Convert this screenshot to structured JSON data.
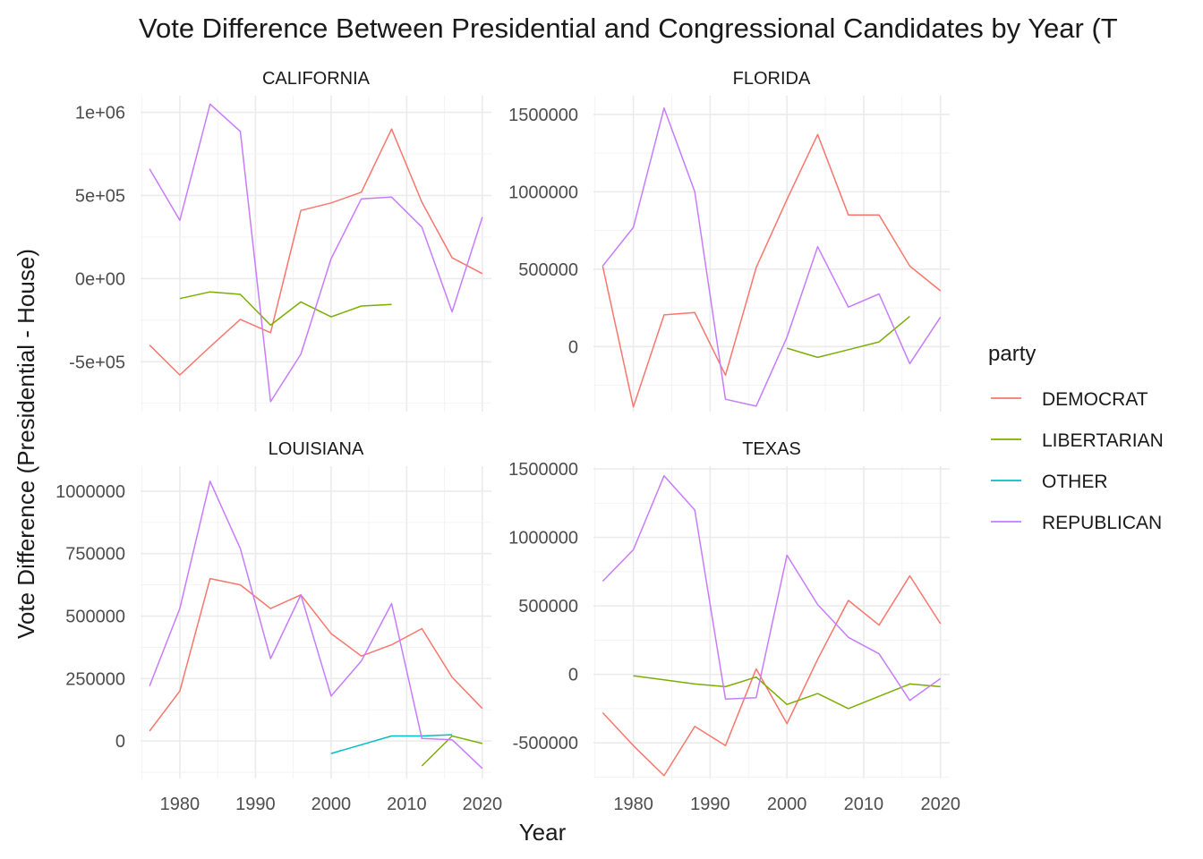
{
  "chart_data": {
    "type": "line",
    "title": "Vote Difference Between Presidential and Congressional Candidates by Year (T",
    "xlabel": "Year",
    "ylabel": "Vote Difference (Presidential - House)",
    "legend_title": "party",
    "legend_placement": "right",
    "grid": true,
    "parties": [
      {
        "name": "DEMOCRAT",
        "color": "#F8766D"
      },
      {
        "name": "LIBERTARIAN",
        "color": "#7CAE00"
      },
      {
        "name": "OTHER",
        "color": "#00BFC4"
      },
      {
        "name": "REPUBLICAN",
        "color": "#C77CFF"
      }
    ],
    "x_ticks": [
      "1980",
      "1990",
      "2000",
      "2010",
      "2020"
    ],
    "xlim": [
      1974.8,
      2021.2
    ],
    "panels": [
      {
        "name": "CALIFORNIA",
        "ylim": [
          -800000,
          1100000
        ],
        "y_ticks": [
          {
            "value": -500000,
            "label": "-5e+05"
          },
          {
            "value": 0,
            "label": "0e+00"
          },
          {
            "value": 500000,
            "label": "5e+05"
          },
          {
            "value": 1000000,
            "label": "1e+06"
          }
        ],
        "series": [
          {
            "name": "DEMOCRAT",
            "x": [
              1976,
              1980,
              1984,
              1988,
              1992,
              1996,
              2000,
              2004,
              2008,
              2012,
              2016,
              2020
            ],
            "y": [
              -400000,
              -580000,
              -410000,
              -245000,
              -325000,
              410000,
              455000,
              520000,
              900000,
              460000,
              125000,
              30000
            ]
          },
          {
            "name": "LIBERTARIAN",
            "x": [
              1980,
              1984,
              1988,
              1992,
              1996,
              2000,
              2004,
              2008
            ],
            "y": [
              -120000,
              -80000,
              -95000,
              -280000,
              -140000,
              -230000,
              -165000,
              -155000
            ]
          },
          {
            "name": "REPUBLICAN",
            "x": [
              1976,
              1980,
              1984,
              1988,
              1992,
              1996,
              2000,
              2004,
              2008,
              2012,
              2016,
              2020
            ],
            "y": [
              660000,
              350000,
              1050000,
              885000,
              -740000,
              -455000,
              120000,
              480000,
              490000,
              310000,
              -200000,
              370000
            ]
          }
        ]
      },
      {
        "name": "FLORIDA",
        "ylim": [
          -420000,
          1620000
        ],
        "y_ticks": [
          {
            "value": 0,
            "label": "0"
          },
          {
            "value": 500000,
            "label": "500000"
          },
          {
            "value": 1000000,
            "label": "1000000"
          },
          {
            "value": 1500000,
            "label": "1500000"
          }
        ],
        "series": [
          {
            "name": "DEMOCRAT",
            "x": [
              1976,
              1980,
              1984,
              1988,
              1992,
              1996,
              2000,
              2004,
              2008,
              2012,
              2016,
              2020
            ],
            "y": [
              520000,
              -390000,
              205000,
              220000,
              -185000,
              510000,
              950000,
              1370000,
              850000,
              850000,
              520000,
              360000
            ]
          },
          {
            "name": "LIBERTARIAN",
            "x": [
              2000,
              2004,
              2008,
              2012,
              2016
            ],
            "y": [
              -10000,
              -70000,
              -20000,
              30000,
              195000
            ]
          },
          {
            "name": "REPUBLICAN",
            "x": [
              1976,
              1980,
              1984,
              1988,
              1992,
              1996,
              2000,
              2004,
              2008,
              2012,
              2016,
              2020
            ],
            "y": [
              520000,
              770000,
              1540000,
              1000000,
              -340000,
              -385000,
              60000,
              645000,
              255000,
              340000,
              -110000,
              190000
            ]
          }
        ]
      },
      {
        "name": "LOUISIANA",
        "ylim": [
          -150000,
          1100000
        ],
        "y_ticks": [
          {
            "value": 0,
            "label": "0"
          },
          {
            "value": 250000,
            "label": "250000"
          },
          {
            "value": 500000,
            "label": "500000"
          },
          {
            "value": 750000,
            "label": "750000"
          },
          {
            "value": 1000000,
            "label": "1000000"
          }
        ],
        "series": [
          {
            "name": "DEMOCRAT",
            "x": [
              1976,
              1980,
              1984,
              1988,
              1992,
              1996,
              2000,
              2004,
              2008,
              2012,
              2016,
              2020
            ],
            "y": [
              40000,
              200000,
              650000,
              625000,
              530000,
              585000,
              430000,
              340000,
              385000,
              450000,
              255000,
              130000
            ]
          },
          {
            "name": "LIBERTARIAN",
            "x": [
              2012,
              2016,
              2020
            ],
            "y": [
              -100000,
              20000,
              -10000
            ]
          },
          {
            "name": "OTHER",
            "x": [
              2000,
              2004,
              2008,
              2012,
              2016
            ],
            "y": [
              -50000,
              -15000,
              20000,
              20000,
              25000
            ]
          },
          {
            "name": "REPUBLICAN",
            "x": [
              1976,
              1980,
              1984,
              1988,
              1992,
              1996,
              2000,
              2004,
              2008,
              2012,
              2016,
              2020
            ],
            "y": [
              220000,
              530000,
              1040000,
              770000,
              330000,
              585000,
              180000,
              320000,
              550000,
              10000,
              5000,
              -110000
            ]
          }
        ]
      },
      {
        "name": "TEXAS",
        "ylim": [
          -760000,
          1520000
        ],
        "y_ticks": [
          {
            "value": -500000,
            "label": "-500000"
          },
          {
            "value": 0,
            "label": "0"
          },
          {
            "value": 500000,
            "label": "500000"
          },
          {
            "value": 1000000,
            "label": "1000000"
          },
          {
            "value": 1500000,
            "label": "1500000"
          }
        ],
        "series": [
          {
            "name": "DEMOCRAT",
            "x": [
              1976,
              1980,
              1984,
              1988,
              1992,
              1996,
              2000,
              2004,
              2008,
              2012,
              2016,
              2020
            ],
            "y": [
              -280000,
              -520000,
              -740000,
              -380000,
              -520000,
              40000,
              -360000,
              110000,
              540000,
              360000,
              720000,
              370000
            ]
          },
          {
            "name": "LIBERTARIAN",
            "x": [
              1980,
              1984,
              1988,
              1992,
              1996,
              2000,
              2004,
              2008,
              2012,
              2016,
              2020
            ],
            "y": [
              -10000,
              -40000,
              -70000,
              -90000,
              -20000,
              -220000,
              -140000,
              -250000,
              -160000,
              -70000,
              -90000
            ]
          },
          {
            "name": "REPUBLICAN",
            "x": [
              1976,
              1980,
              1984,
              1988,
              1992,
              1996,
              2000,
              2004,
              2008,
              2012,
              2016,
              2020
            ],
            "y": [
              680000,
              910000,
              1450000,
              1200000,
              -180000,
              -170000,
              870000,
              510000,
              270000,
              150000,
              -190000,
              -30000
            ]
          }
        ]
      }
    ]
  }
}
